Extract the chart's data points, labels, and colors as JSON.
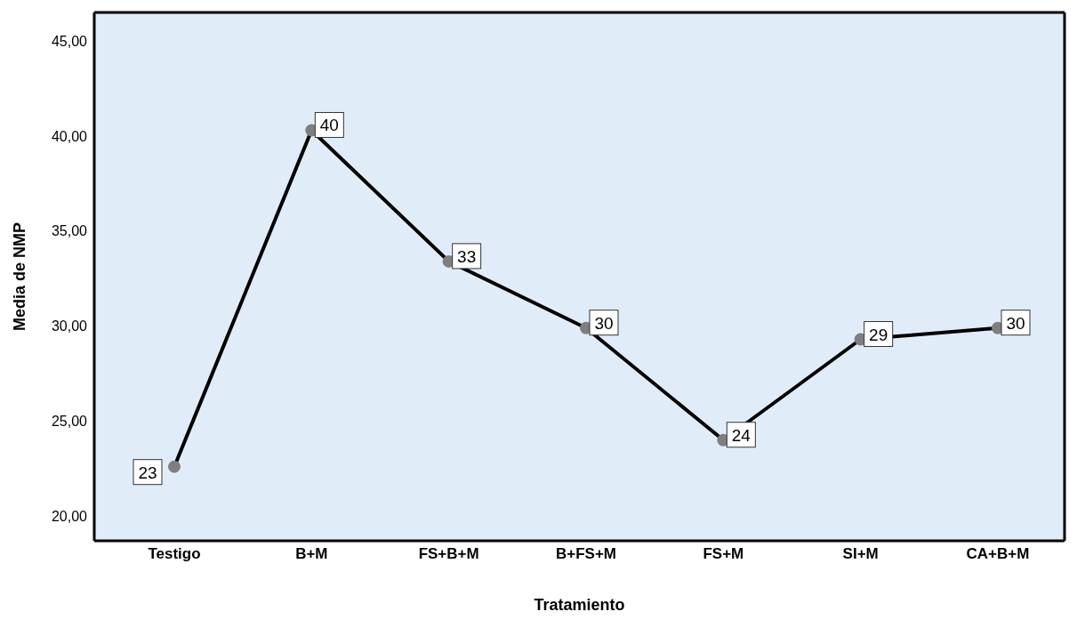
{
  "chart_data": {
    "type": "line",
    "xlabel": "Tratamiento",
    "ylabel": "Media de NMP",
    "categories": [
      "Testigo",
      "B+M",
      "FS+B+M",
      "B+FS+M",
      "FS+M",
      "SI+M",
      "CA+B+M"
    ],
    "series": [
      {
        "color": "#000000",
        "values": [
          22.6,
          40.3,
          33.4,
          29.9,
          24.0,
          29.3,
          29.9
        ],
        "value_labels": [
          "23",
          "40",
          "33",
          "30",
          "24",
          "29",
          "30"
        ]
      }
    ],
    "ylim": [
      18.7,
      46.5
    ],
    "yticks": [
      {
        "value": 20,
        "label": "20,00"
      },
      {
        "value": 25,
        "label": "25,00"
      },
      {
        "value": 30,
        "label": "30,00"
      },
      {
        "value": 35,
        "label": "35,00"
      },
      {
        "value": 40,
        "label": "40,00"
      },
      {
        "value": 45,
        "label": "45,00"
      }
    ],
    "marker": "circle",
    "line_style": "solid"
  }
}
